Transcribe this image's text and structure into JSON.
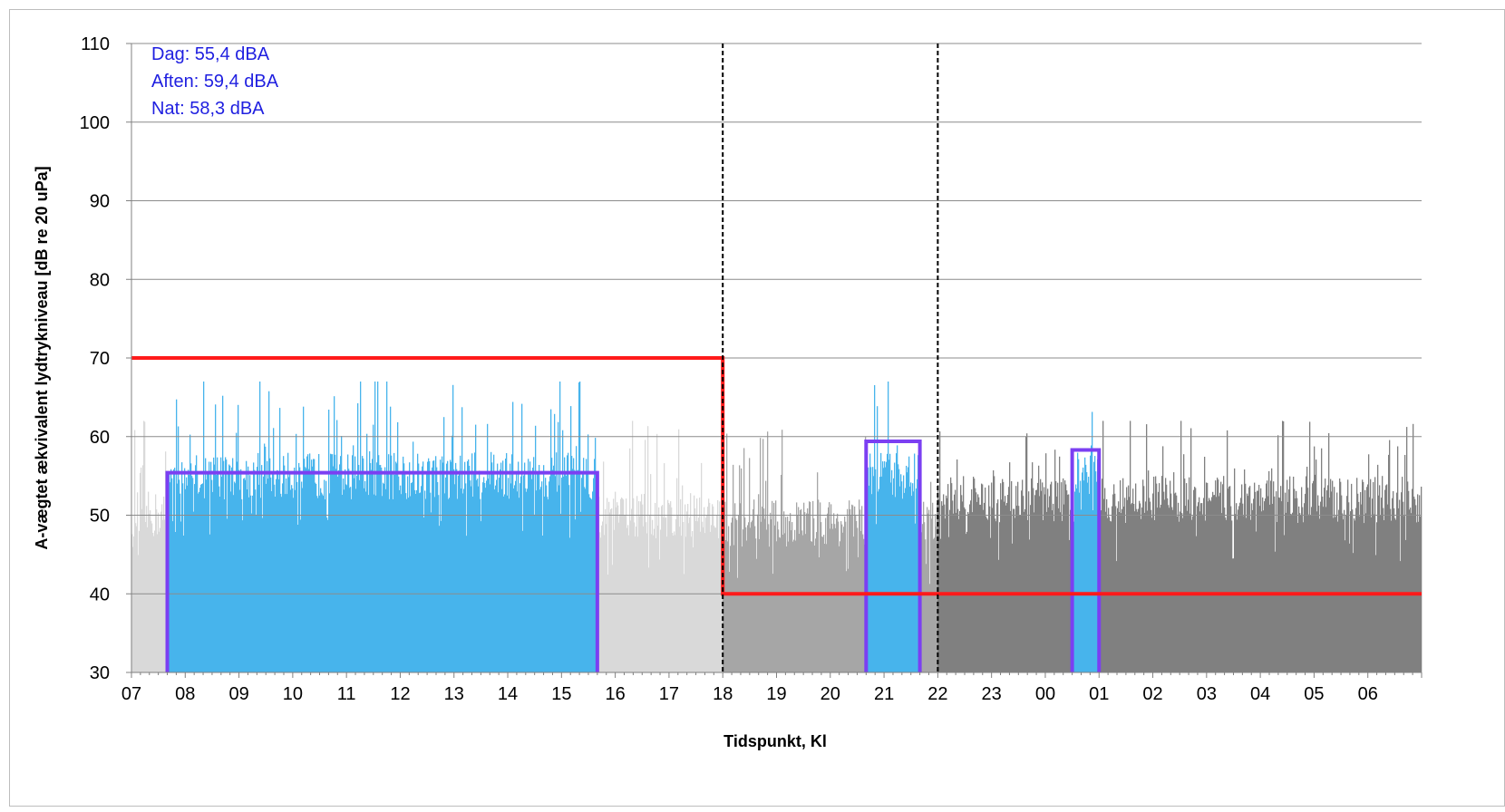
{
  "chart_data": {
    "type": "bar",
    "xlabel": "Tidspunkt, Kl",
    "ylabel": "A-vægtet ækvivalent lydtrykniveau [dB re 20 uPa]",
    "ylim": [
      30,
      110
    ],
    "yticks": [
      "30",
      "40",
      "50",
      "60",
      "70",
      "80",
      "90",
      "100",
      "110"
    ],
    "x_hours": [
      "07",
      "08",
      "09",
      "10",
      "11",
      "12",
      "13",
      "14",
      "15",
      "16",
      "17",
      "18",
      "19",
      "20",
      "21",
      "22",
      "23",
      "00",
      "01",
      "02",
      "03",
      "04",
      "05",
      "06"
    ],
    "grid": true,
    "legend": "none",
    "annotations": [
      "Dag: 55,4 dBA",
      "Aften: 59,4 dBA",
      "Nat: 58,3 dBA"
    ],
    "period_boundaries": [
      "18",
      "22"
    ],
    "limit_line": {
      "color": "#ff1a1a",
      "segments": [
        {
          "from": "07",
          "to": "18",
          "value": 70
        },
        {
          "from": "18",
          "to": "06",
          "value": 40
        }
      ]
    },
    "measurement_periods": [
      {
        "start": "07:40",
        "end": "15:40",
        "leq": 55.4,
        "label": "Dag: 55,4 dBA"
      },
      {
        "start": "20:40",
        "end": "21:40",
        "leq": 59.4,
        "label": "Aften: 59,4 dBA"
      },
      {
        "start": "00:30",
        "end": "01:00",
        "leq": 58.3,
        "label": "Nat: 58,3 dBA"
      }
    ],
    "series": [
      {
        "period": "day-background",
        "from": "07:00",
        "to": "18:00",
        "color": "#d9d9d9",
        "typical_db": 50,
        "peak_db": 62
      },
      {
        "period": "evening-background",
        "from": "18:00",
        "to": "22:00",
        "color": "#a6a6a6",
        "typical_db": 49,
        "peak_db": 61
      },
      {
        "period": "night-background",
        "from": "22:00",
        "to": "07:00",
        "color": "#808080",
        "typical_db": 52,
        "peak_db": 62
      },
      {
        "period": "measured",
        "color": "#47b4ec",
        "typical_db": 55,
        "peak_db": 67
      }
    ],
    "colors": {
      "measured": "#47b4ec",
      "leq_box": "#7b3ff2",
      "limit": "#ff1a1a",
      "annotation": "#2020e0",
      "grid": "#8c8c8c"
    }
  }
}
